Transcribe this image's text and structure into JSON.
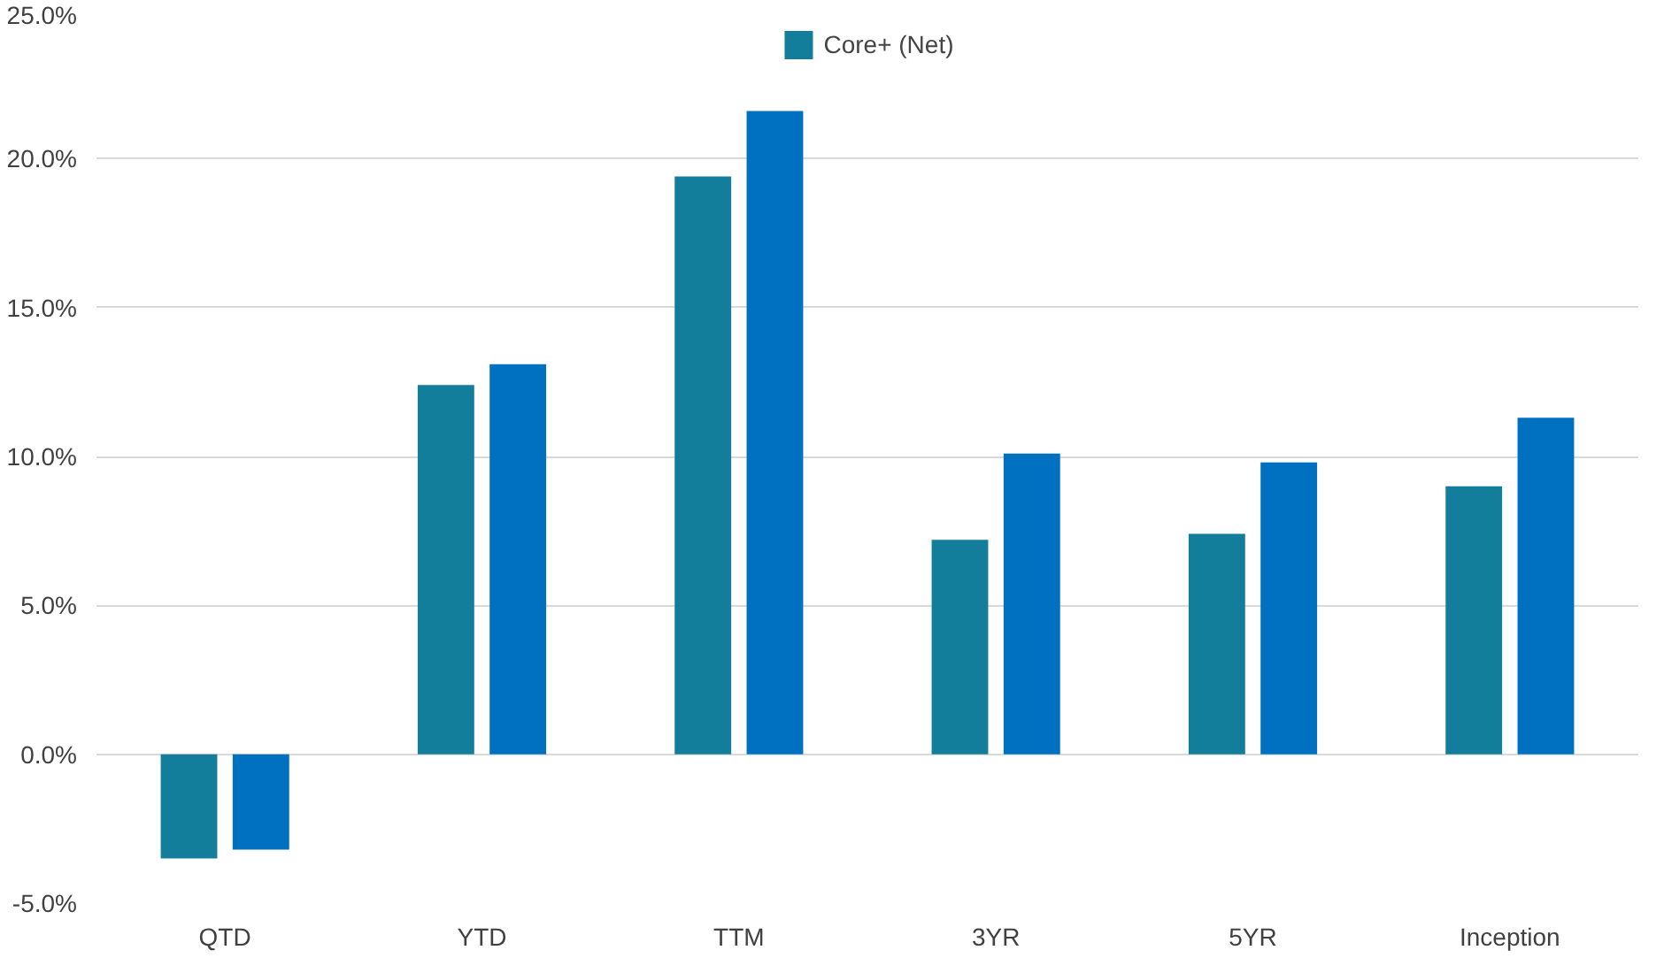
{
  "chart_data": {
    "type": "bar",
    "categories": [
      "QTD",
      "YTD",
      "TTM",
      "3YR",
      "5YR",
      "Inception"
    ],
    "series": [
      {
        "name": "Core+ (Net)",
        "color": "#137e9b",
        "values": [
          -3.5,
          12.4,
          19.4,
          7.2,
          7.4,
          9.0
        ]
      },
      {
        "color": "#0070c0",
        "values": [
          -3.2,
          13.1,
          21.6,
          10.1,
          9.8,
          11.3
        ]
      }
    ],
    "ylim": [
      -5,
      25
    ],
    "yticks": [
      {
        "value": -5,
        "label": "-5.0%"
      },
      {
        "value": 0,
        "label": "0.0%"
      },
      {
        "value": 5,
        "label": "5.0%"
      },
      {
        "value": 10,
        "label": "10.0%"
      },
      {
        "value": 15,
        "label": "15.0%"
      },
      {
        "value": 20,
        "label": "20.0%"
      },
      {
        "value": 25,
        "label": "25.0%"
      }
    ],
    "grid": "y",
    "legend": "top"
  }
}
